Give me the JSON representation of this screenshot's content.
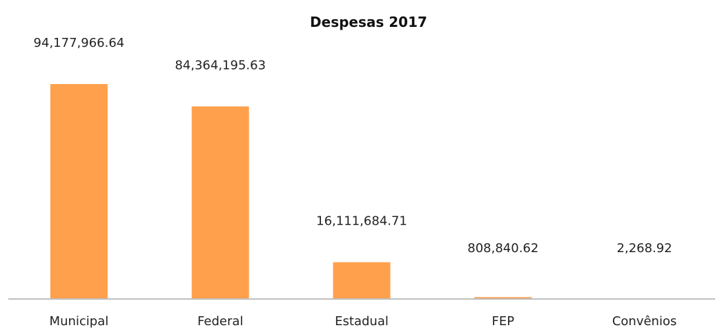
{
  "chart_data": {
    "type": "bar",
    "title": "Despesas 2017",
    "categories": [
      "Municipal",
      "Federal",
      "Estadual",
      "FEP",
      "Convênios"
    ],
    "values": [
      94177966.64,
      84364195.63,
      16111684.71,
      808840.62,
      2268.92
    ],
    "value_labels": [
      "94,177,966.64",
      "84,364,195.63",
      "16,111,684.71",
      "808,840.62",
      "2,268.92"
    ],
    "xlabel": "",
    "ylabel": "",
    "ylim": [
      0,
      94177966.64
    ],
    "grid": false,
    "legend": "none",
    "bar_color": "#FFA04D",
    "axis_color": "#BFBFBF"
  }
}
